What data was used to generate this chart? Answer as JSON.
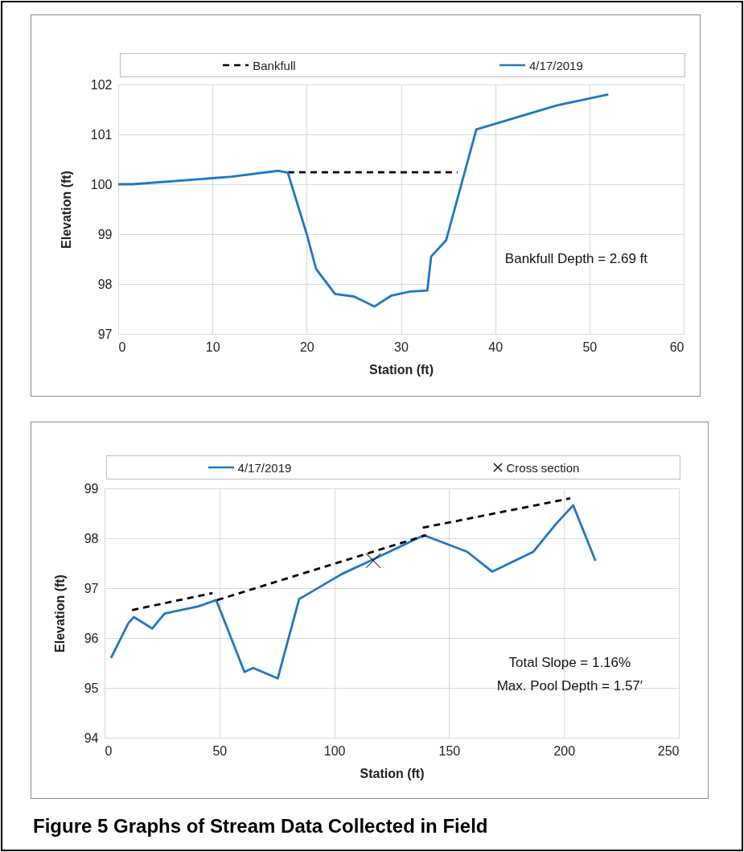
{
  "chart_data": [
    {
      "type": "line",
      "xlabel": "Station (ft)",
      "ylabel": "Elevation (ft)",
      "xlim": [
        0,
        60
      ],
      "xticks": [
        0,
        10,
        20,
        30,
        40,
        50,
        60
      ],
      "ylim": [
        97,
        102
      ],
      "yticks": [
        97,
        98,
        99,
        100,
        101,
        102
      ],
      "grid": true,
      "legend": "top",
      "annotations": [
        "Bankfull Depth = 2.69 ft"
      ],
      "series": [
        {
          "name": "Bankfull",
          "color": "#000000",
          "line_style": "dashed",
          "x": [
            18,
            36
          ],
          "values": [
            100.24,
            100.24
          ]
        },
        {
          "name": "4/17/2019",
          "color": "#1f77c4",
          "x": [
            0,
            1.5,
            12,
            17,
            18,
            20,
            21,
            23,
            25,
            27.2,
            29,
            31,
            32.8,
            33.2,
            34.8,
            38,
            46.5,
            52
          ],
          "values": [
            100.0,
            100.0,
            100.15,
            100.27,
            100.23,
            99.0,
            98.3,
            97.8,
            97.75,
            97.55,
            97.77,
            97.85,
            97.87,
            98.55,
            98.88,
            101.1,
            101.58,
            101.8
          ]
        }
      ]
    },
    {
      "type": "line",
      "xlabel": "Station (ft)",
      "ylabel": "Elevation (ft)",
      "xlim": [
        0,
        250
      ],
      "xticks": [
        0,
        50,
        100,
        150,
        200,
        250
      ],
      "ylim": [
        94,
        99
      ],
      "yticks": [
        94,
        95,
        96,
        97,
        98,
        99
      ],
      "grid": true,
      "legend": "top",
      "annotations": [
        "Total Slope = 1.16%",
        "Max. Pool Depth = 1.57′",
        "Figure 5  Graphs of Stream Data Collected in Field"
      ],
      "series": [
        {
          "name": "4/17/2019",
          "color": "#1f77c4",
          "x": [
            2.8,
            10.4,
            12.8,
            20.8,
            26.1,
            40.6,
            48.6,
            60.9,
            64.7,
            75.4,
            84.7,
            103.2,
            115.7,
            139,
            157.8,
            168.8,
            186.7,
            196.4,
            204,
            213.7
          ],
          "values": [
            95.6,
            96.3,
            96.42,
            96.19,
            96.49,
            96.63,
            96.76,
            95.32,
            95.4,
            95.19,
            96.78,
            97.28,
            97.55,
            98.06,
            97.73,
            97.33,
            97.73,
            98.28,
            98.66,
            97.55
          ]
        },
        {
          "name": "Cross section",
          "type": "scatter",
          "marker": "cross",
          "color": "#000000",
          "x": [
            117
          ],
          "values": [
            97.55
          ]
        },
        {
          "color": "#000000",
          "line_style": "dashed",
          "x": [
            12,
            47
          ],
          "values": [
            96.56,
            96.9
          ]
        },
        {
          "color": "#000000",
          "line_style": "dashed",
          "x": [
            49,
            140
          ],
          "values": [
            96.76,
            98.06
          ]
        },
        {
          "color": "#000000",
          "line_style": "dashed",
          "x": [
            138.5,
            202.7
          ],
          "values": [
            98.21,
            98.8
          ]
        }
      ]
    }
  ]
}
